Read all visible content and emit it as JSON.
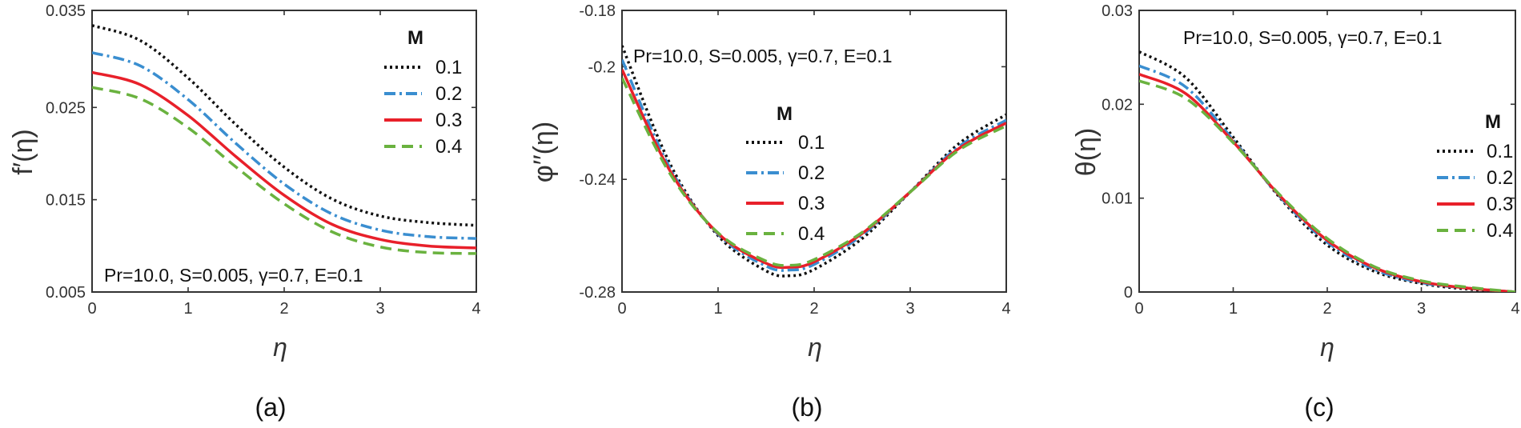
{
  "chart_data": [
    {
      "type": "line",
      "panel_label": "(a)",
      "title": "",
      "xlabel": "η",
      "ylabel": "f′(η)",
      "xlim": [
        0,
        4
      ],
      "ylim": [
        0.005,
        0.035
      ],
      "xticks": [
        "0",
        "1",
        "2",
        "3",
        "4"
      ],
      "yticks": [
        "0.005",
        "0.015",
        "0.025",
        "0.035"
      ],
      "annotation": "Pr=10.0, S=0.005, γ=0.7, E=0.1",
      "legend_title": "M",
      "legend_position": "top-right",
      "x": [
        0,
        0.5,
        1,
        1.5,
        2,
        2.5,
        3,
        3.5,
        4
      ],
      "series": [
        {
          "name": "0.1",
          "color": "#111111",
          "style": "dotted",
          "values": [
            0.0334,
            0.0318,
            0.0278,
            0.0228,
            0.0183,
            0.0149,
            0.0131,
            0.0124,
            0.0121
          ]
        },
        {
          "name": "0.2",
          "color": "#3a8ed0",
          "style": "dashdot",
          "values": [
            0.0305,
            0.0291,
            0.0255,
            0.0208,
            0.0165,
            0.0133,
            0.0116,
            0.0109,
            0.0107
          ]
        },
        {
          "name": "0.3",
          "color": "#e8202a",
          "style": "solid",
          "values": [
            0.0284,
            0.0271,
            0.0238,
            0.0194,
            0.0153,
            0.0122,
            0.0106,
            0.0099,
            0.0097
          ]
        },
        {
          "name": "0.4",
          "color": "#6ab23f",
          "style": "dashed",
          "values": [
            0.0268,
            0.0256,
            0.0225,
            0.0183,
            0.0144,
            0.0114,
            0.0098,
            0.0092,
            0.0091
          ]
        }
      ]
    },
    {
      "type": "line",
      "panel_label": "(b)",
      "title": "",
      "xlabel": "η",
      "ylabel": "φ′′(η)",
      "xlim": [
        0,
        4
      ],
      "ylim": [
        -0.28,
        -0.18
      ],
      "xticks": [
        "0",
        "1",
        "2",
        "3",
        "4"
      ],
      "yticks": [
        "-0.28",
        "-0.24",
        "-0.2",
        "-0.18"
      ],
      "annotation": "Pr=10.0, S=0.005, γ=0.7, E=0.1",
      "legend_title": "M",
      "legend_position": "center",
      "x": [
        0,
        0.5,
        1,
        1.5,
        1.75,
        2,
        2.5,
        3,
        3.5,
        4
      ],
      "series": [
        {
          "name": "0.1",
          "color": "#111111",
          "style": "dotted",
          "values": [
            -0.1925,
            -0.2345,
            -0.26,
            -0.2725,
            -0.2742,
            -0.272,
            -0.261,
            -0.2445,
            -0.2275,
            -0.217
          ]
        },
        {
          "name": "0.2",
          "color": "#3a8ed0",
          "style": "dashdot",
          "values": [
            -0.1975,
            -0.236,
            -0.2595,
            -0.2708,
            -0.2722,
            -0.2702,
            -0.2598,
            -0.2445,
            -0.2285,
            -0.219
          ]
        },
        {
          "name": "0.3",
          "color": "#e8202a",
          "style": "solid",
          "values": [
            -0.201,
            -0.237,
            -0.2592,
            -0.2698,
            -0.2712,
            -0.2693,
            -0.2592,
            -0.2445,
            -0.2292,
            -0.22
          ]
        },
        {
          "name": "0.4",
          "color": "#6ab23f",
          "style": "dashed",
          "values": [
            -0.204,
            -0.238,
            -0.259,
            -0.269,
            -0.2705,
            -0.2685,
            -0.2588,
            -0.2445,
            -0.2298,
            -0.221
          ]
        }
      ]
    },
    {
      "type": "line",
      "panel_label": "(c)",
      "title": "",
      "xlabel": "η",
      "ylabel": "θ(η)",
      "xlim": [
        0,
        4
      ],
      "ylim": [
        0,
        0.03
      ],
      "xticks": [
        "0",
        "1",
        "2",
        "3",
        "4"
      ],
      "yticks": [
        "0",
        "0.01",
        "0.02",
        "0.03"
      ],
      "annotation": "Pr=10.0, S=0.005, γ=0.7, E=0.1",
      "legend_title": "M",
      "legend_position": "right",
      "x": [
        0,
        0.5,
        1,
        1.5,
        2,
        2.5,
        3,
        3.5,
        4
      ],
      "series": [
        {
          "name": "0.1",
          "color": "#111111",
          "style": "dotted",
          "values": [
            0.0256,
            0.0228,
            0.0165,
            0.01,
            0.005,
            0.0022,
            0.0009,
            0.0003,
            0.0
          ]
        },
        {
          "name": "0.2",
          "color": "#3a8ed0",
          "style": "dashdot",
          "values": [
            0.0241,
            0.0218,
            0.0162,
            0.0101,
            0.0053,
            0.0024,
            0.001,
            0.0004,
            0.0
          ]
        },
        {
          "name": "0.3",
          "color": "#e8202a",
          "style": "solid",
          "values": [
            0.0232,
            0.0211,
            0.016,
            0.0102,
            0.0055,
            0.0026,
            0.0011,
            0.0004,
            0.0
          ]
        },
        {
          "name": "0.4",
          "color": "#6ab23f",
          "style": "dashed",
          "values": [
            0.0225,
            0.0206,
            0.0159,
            0.0103,
            0.0057,
            0.0027,
            0.0012,
            0.0005,
            0.0
          ]
        }
      ]
    }
  ]
}
